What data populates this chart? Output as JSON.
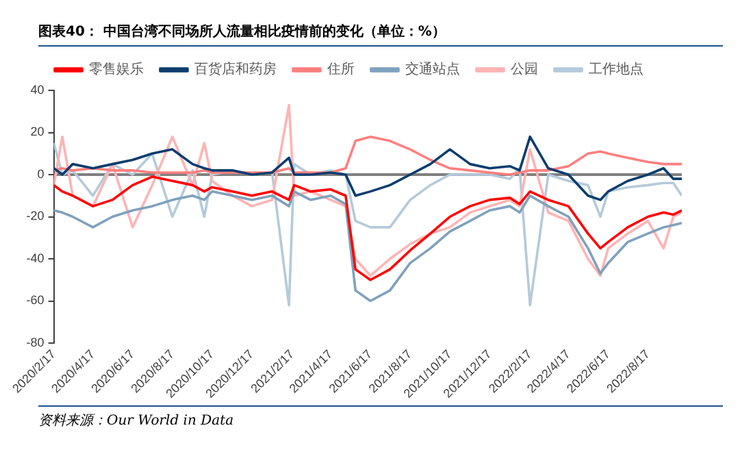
{
  "chart_data": {
    "type": "line",
    "title": "图表40： 中国台湾不同场所人流量相比疫情前的变化（单位：%）",
    "legend": "top",
    "marker": "none",
    "line_style": "solid",
    "x": [
      "2020-02-17",
      "2020-03-01",
      "2020-03-17",
      "2020-04-17",
      "2020-05-17",
      "2020-06-17",
      "2020-07-17",
      "2020-08-17",
      "2020-09-17",
      "2020-10-05",
      "2020-10-17",
      "2020-11-17",
      "2020-12-17",
      "2021-01-17",
      "2021-02-12",
      "2021-02-20",
      "2021-03-17",
      "2021-04-17",
      "2021-05-10",
      "2021-05-25",
      "2021-06-17",
      "2021-07-17",
      "2021-08-17",
      "2021-09-17",
      "2021-10-17",
      "2021-11-17",
      "2021-12-17",
      "2022-01-17",
      "2022-02-01",
      "2022-02-17",
      "2022-03-17",
      "2022-04-17",
      "2022-05-17",
      "2022-06-05",
      "2022-06-17",
      "2022-07-17",
      "2022-08-17",
      "2022-09-10",
      "2022-09-25",
      "2022-10-08"
    ],
    "series": [
      {
        "name": "零售娱乐",
        "color": "#ff0000",
        "values": [
          -5,
          -8,
          -10,
          -15,
          -12,
          -5,
          -1,
          -3,
          -5,
          -8,
          -6,
          -8,
          -10,
          -8,
          -12,
          -5,
          -8,
          -7,
          -10,
          -45,
          -50,
          -45,
          -36,
          -28,
          -20,
          -15,
          -12,
          -11,
          -14,
          -8,
          -12,
          -15,
          -28,
          -35,
          -32,
          -25,
          -20,
          -18,
          -19,
          -17
        ]
      },
      {
        "name": "百货店和药房",
        "color": "#0b3d6e",
        "values": [
          3,
          0,
          5,
          3,
          5,
          7,
          10,
          12,
          5,
          3,
          2,
          2,
          0,
          1,
          8,
          0,
          0,
          1,
          0,
          -10,
          -8,
          -5,
          0,
          5,
          12,
          5,
          3,
          4,
          2,
          18,
          3,
          0,
          -10,
          -12,
          -8,
          -3,
          0,
          3,
          -2,
          -2
        ]
      },
      {
        "name": "住所",
        "color": "#ff7f7f",
        "values": [
          2,
          3,
          2,
          3,
          2,
          2,
          1,
          1,
          1,
          2,
          1,
          1,
          1,
          1,
          3,
          1,
          1,
          1,
          3,
          16,
          18,
          16,
          12,
          7,
          3,
          2,
          1,
          0,
          1,
          2,
          2,
          4,
          10,
          11,
          10,
          8,
          6,
          5,
          5,
          5
        ]
      },
      {
        "name": "交通站点",
        "color": "#7fa1bd",
        "values": [
          -17,
          -18,
          -20,
          -25,
          -20,
          -17,
          -15,
          -12,
          -10,
          -12,
          -8,
          -10,
          -12,
          -10,
          -15,
          -8,
          -12,
          -10,
          -14,
          -55,
          -60,
          -55,
          -42,
          -35,
          -27,
          -22,
          -17,
          -15,
          -18,
          -10,
          -15,
          -20,
          -35,
          -47,
          -42,
          -32,
          -28,
          -25,
          -24,
          -23
        ]
      },
      {
        "name": "公园",
        "color": "#ffb3b3",
        "values": [
          -5,
          18,
          -10,
          -15,
          5,
          -25,
          -5,
          18,
          -5,
          15,
          -3,
          -10,
          -15,
          -12,
          33,
          -10,
          -8,
          -12,
          -15,
          -40,
          -48,
          -40,
          -33,
          -28,
          -25,
          -18,
          -15,
          -12,
          -15,
          12,
          -18,
          -22,
          -40,
          -48,
          -35,
          -28,
          -22,
          -35,
          -20,
          -18
        ]
      },
      {
        "name": "工作地点",
        "color": "#b4cadb",
        "values": [
          15,
          0,
          2,
          -10,
          5,
          0,
          10,
          -20,
          2,
          -20,
          0,
          2,
          0,
          1,
          -62,
          5,
          0,
          2,
          0,
          -22,
          -25,
          -25,
          -12,
          -5,
          0,
          0,
          0,
          -2,
          3,
          -62,
          0,
          -3,
          -5,
          -20,
          -8,
          -6,
          -5,
          -4,
          -4,
          -10
        ]
      }
    ],
    "xlim": [
      "2020-02-17",
      "2022-10-08"
    ],
    "xticks": [
      {
        "value": "2020-02-17",
        "label": "2020/2/17"
      },
      {
        "value": "2020-04-17",
        "label": "2020/4/17"
      },
      {
        "value": "2020-06-17",
        "label": "2020/6/17"
      },
      {
        "value": "2020-08-17",
        "label": "2020/8/17"
      },
      {
        "value": "2020-10-17",
        "label": "2020/10/17"
      },
      {
        "value": "2020-12-17",
        "label": "2020/12/17"
      },
      {
        "value": "2021-02-17",
        "label": "2021/2/17"
      },
      {
        "value": "2021-04-17",
        "label": "2021/4/17"
      },
      {
        "value": "2021-06-17",
        "label": "2021/6/17"
      },
      {
        "value": "2021-08-17",
        "label": "2021/8/17"
      },
      {
        "value": "2021-10-17",
        "label": "2021/10/17"
      },
      {
        "value": "2021-12-17",
        "label": "2021/12/17"
      },
      {
        "value": "2022-02-17",
        "label": "2022/2/17"
      },
      {
        "value": "2022-04-17",
        "label": "2022/4/17"
      },
      {
        "value": "2022-06-17",
        "label": "2022/6/17"
      },
      {
        "value": "2022-08-17",
        "label": "2022/8/17"
      }
    ],
    "ylim": [
      -80,
      40
    ],
    "yticks": [
      -80,
      -60,
      -40,
      -20,
      0,
      20,
      40
    ],
    "ref_lines": [
      {
        "axis": "y",
        "value": 0,
        "color": "#808080"
      }
    ],
    "annotations": [
      "资料来源：Our World in Data"
    ]
  }
}
